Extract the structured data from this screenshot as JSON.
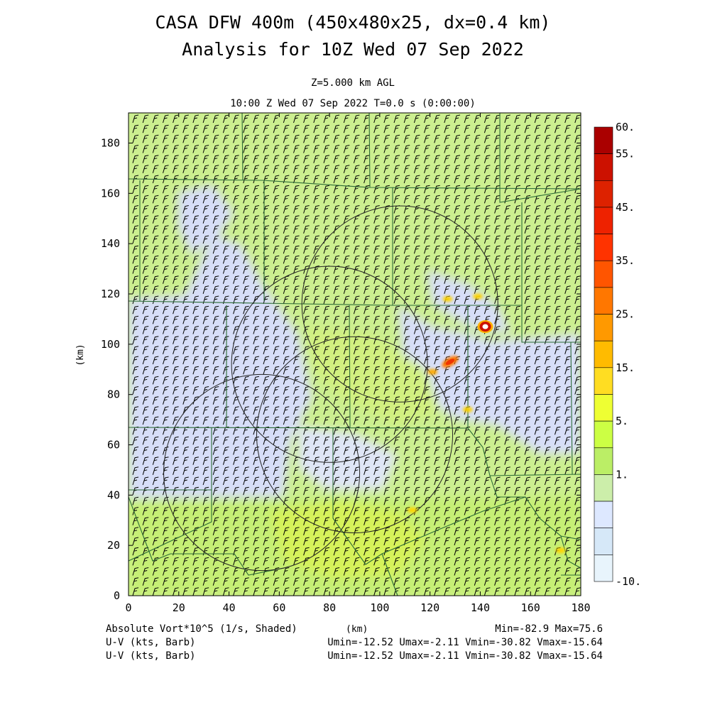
{
  "header": {
    "title_line1": "CASA DFW 400m (450x480x25, dx=0.4 km)",
    "title_line2": "Analysis for 10Z Wed 07 Sep 2022",
    "level": "Z=5.000 km AGL",
    "valid_time": "10:00 Z Wed 07 Sep 2022    T=0.0 s (0:00:00)"
  },
  "footer": {
    "field_label": "Absolute Vort*10^5 (1/s, Shaded)",
    "xunit": "(km)",
    "minmax": "Min=-82.9 Max=75.6",
    "barb_label_1": "U-V (kts, Barb)",
    "barb_stats_1": "Umin=-12.52 Umax=-2.11 Vmin=-30.82 Vmax=-15.64",
    "barb_label_2": "U-V (kts, Barb)",
    "barb_stats_2": "Umin=-12.52 Umax=-2.11 Vmin=-30.82 Vmax=-15.64"
  },
  "chart_data": {
    "type": "heatmap",
    "xlabel": "(km)",
    "ylabel": "(km)",
    "xlim": [
      0,
      180
    ],
    "ylim": [
      0,
      192
    ],
    "xticks": [
      0,
      20,
      40,
      60,
      80,
      100,
      120,
      140,
      160,
      180
    ],
    "yticks": [
      0,
      20,
      40,
      60,
      80,
      100,
      120,
      140,
      160,
      180
    ],
    "field": "Absolute Vort*10^5 (1/s, Shaded)",
    "field_min": -82.9,
    "field_max": 75.6,
    "colorbar": {
      "labels": [
        "60.",
        "55.",
        "45.",
        "35.",
        "25.",
        "15.",
        "5.",
        "1.",
        "-10."
      ],
      "colors": [
        "#aa0000",
        "#cc1100",
        "#dd2200",
        "#ee2200",
        "#ff3300",
        "#ff5500",
        "#ff7700",
        "#ff9900",
        "#ffbb00",
        "#ffdd22",
        "#eeff33",
        "#ccff44",
        "#bbee66",
        "#cceeaa",
        "#dde8ff",
        "#d6e8f8",
        "#e8f4fc"
      ]
    },
    "radar_circles": [
      {
        "center": [
          108,
          116
        ],
        "radius": 39
      },
      {
        "center": [
          80,
          92
        ],
        "radius": 39
      },
      {
        "center": [
          90,
          64
        ],
        "radius": 39
      },
      {
        "center": [
          53,
          49
        ],
        "radius": 39
      }
    ],
    "features": [
      {
        "kind": "vortex",
        "x": 142,
        "y": 107,
        "value": 60
      },
      {
        "kind": "cell",
        "x": 128,
        "y": 93,
        "value": 35
      },
      {
        "kind": "cell",
        "x": 121,
        "y": 89,
        "value": 25
      },
      {
        "kind": "cell",
        "x": 127,
        "y": 118,
        "value": 20
      },
      {
        "kind": "cell",
        "x": 139,
        "y": 119,
        "value": 20
      },
      {
        "kind": "cell",
        "x": 135,
        "y": 74,
        "value": 20
      },
      {
        "kind": "cell",
        "x": 113,
        "y": 34,
        "value": 20
      },
      {
        "kind": "cell",
        "x": 172,
        "y": 18,
        "value": 20
      }
    ],
    "barbs": {
      "u_range": [
        -12.52,
        -2.11
      ],
      "v_range": [
        -30.82,
        -15.64
      ],
      "units": "kts"
    }
  }
}
